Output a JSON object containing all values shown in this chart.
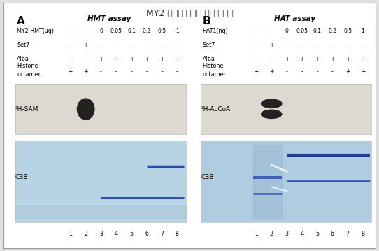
{
  "title": "MY2 고세균 히스톤 변형 단백질",
  "title_fontsize": 9,
  "panel_A_label": "A",
  "panel_B_label": "B",
  "assay_A": "HMT assay",
  "assay_B": "HAT assay",
  "panel_A_row1_label": "MY2 HMT(ug)",
  "panel_A_row1_vals": [
    "-",
    "-",
    "0",
    "0.05",
    "0.1",
    "0.2",
    "0.5",
    "1"
  ],
  "panel_A_row2_label": "Set7",
  "panel_A_row2_vals": [
    "-",
    "+",
    "-",
    "-",
    "-",
    "-",
    "-",
    "-"
  ],
  "panel_A_row3_label": "Alba",
  "panel_A_row3_vals": [
    "-",
    "-",
    "+",
    "+",
    "+",
    "+",
    "+",
    "+"
  ],
  "panel_A_row4a_label": "Histone",
  "panel_A_row4b_label": "octamer",
  "panel_A_row4_vals": [
    "+",
    "+",
    "-",
    "-",
    "-",
    "-",
    "-",
    "-"
  ],
  "panel_B_row1_label": "HAT1(ng)",
  "panel_B_row1_vals": [
    "-",
    "-",
    "0",
    "0.05",
    "0.1",
    "0.2",
    "0.5",
    "1"
  ],
  "panel_B_row2_label": "Set7",
  "panel_B_row2_vals": [
    "-",
    "+",
    "-",
    "-",
    "-",
    "-",
    "-",
    "-"
  ],
  "panel_B_row3_label": "Alba",
  "panel_B_row3_vals": [
    "-",
    "-",
    "+",
    "+",
    "+",
    "+",
    "+",
    "+"
  ],
  "panel_B_row4a_label": "Histone",
  "panel_B_row4b_label": "octamer",
  "panel_B_row4_vals": [
    "+",
    "+",
    "-",
    "-",
    "-",
    "-",
    "+",
    "+"
  ],
  "radio_label_A": "³H-SAM",
  "radio_label_B": "³H-AcCoA",
  "cbb_label": "CBB",
  "lane_labels": [
    "1",
    "2",
    "3",
    "4",
    "5",
    "6",
    "7",
    "8"
  ],
  "outer_bg": "#e0e0e0",
  "inner_bg": "#ffffff",
  "radio_bg": "#ddd8d0",
  "cbb_bg_A": "#b8d4e4",
  "cbb_bg_B": "#b0cce0",
  "spot_dark": "#222222",
  "band_blue": "#2244aa"
}
